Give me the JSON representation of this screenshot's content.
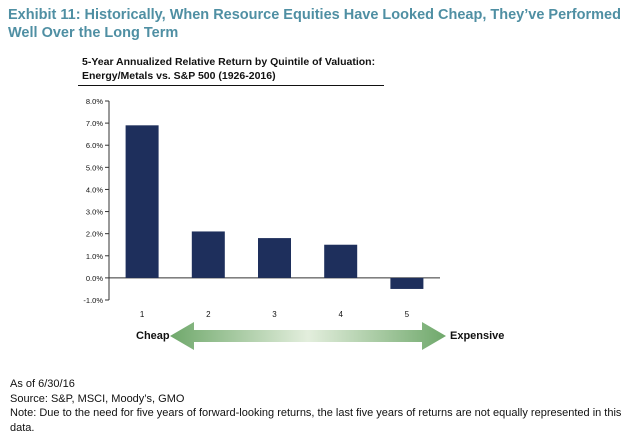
{
  "exhibit_title": "Exhibit 11: Historically, When Resource Equities Have Looked Cheap, They’ve Performed Well Over the Long Term",
  "chart_data": {
    "type": "bar",
    "title_line1": "5-Year Annualized Relative Return by Quintile of Valuation:",
    "title_line2": "Energy/Metals vs. S&P 500 (1926-2016)",
    "categories": [
      "1",
      "2",
      "3",
      "4",
      "5"
    ],
    "values": [
      6.9,
      2.1,
      1.8,
      1.5,
      -0.5
    ],
    "ylim": [
      -1.0,
      8.0
    ],
    "yticks": [
      -1.0,
      0.0,
      1.0,
      2.0,
      3.0,
      4.0,
      5.0,
      6.0,
      7.0,
      8.0
    ],
    "ytick_labels": [
      "-1.0%",
      "0.0%",
      "1.0%",
      "2.0%",
      "3.0%",
      "4.0%",
      "5.0%",
      "6.0%",
      "7.0%",
      "8.0%"
    ],
    "bar_color": "#1e2f5c",
    "grid": false,
    "xlabel": "",
    "ylabel": ""
  },
  "arrow": {
    "left_label": "Cheap",
    "right_label": "Expensive",
    "color_edge": "#6fa86b",
    "color_center": "#e3eedd"
  },
  "footnotes": {
    "as_of": "As of 6/30/16",
    "source": "Source: S&P, MSCI, Moody’s, GMO",
    "note": "Note: Due to the need for five years of forward-looking returns, the last five years of returns are not equally represented in this data."
  }
}
